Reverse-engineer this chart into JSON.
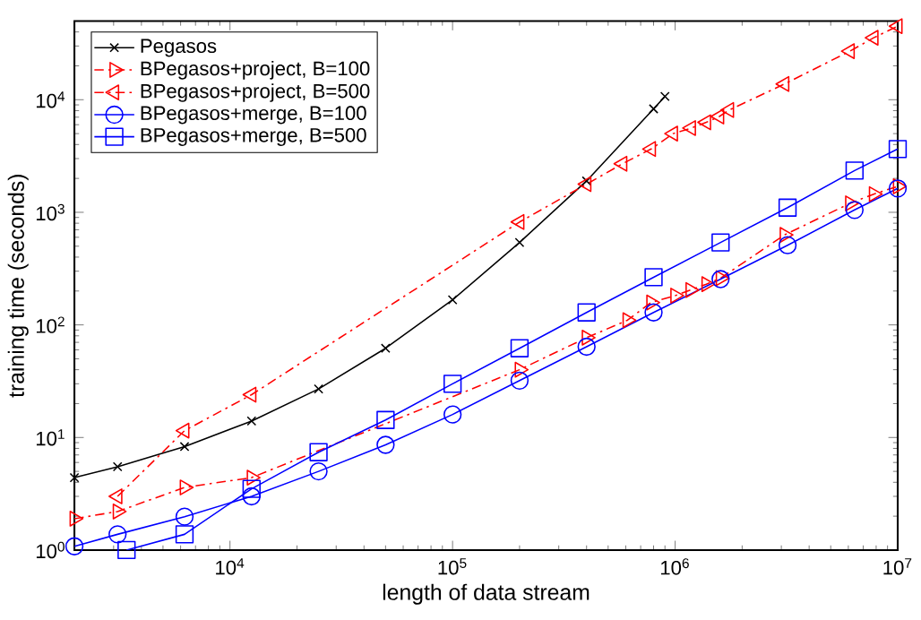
{
  "chart_data": {
    "type": "line",
    "xlabel": "length of data stream",
    "ylabel": "training time (seconds)",
    "log": "xy",
    "grid": false,
    "legend": "top left",
    "xlim": [
      2000,
      10000000
    ],
    "ylim": [
      1,
      50000
    ],
    "xticks": [
      {
        "value": 10000,
        "label": "10$^{4}$"
      },
      {
        "value": 100000,
        "label": "10$^{5}$"
      },
      {
        "value": 1000000,
        "label": "10$^{6}$"
      },
      {
        "value": 10000000,
        "label": "10$^{7}$"
      }
    ],
    "yticks": [
      {
        "value": 1,
        "label": "10$^{0}$"
      },
      {
        "value": 10,
        "label": "10$^{1}$"
      },
      {
        "value": 100,
        "label": "10$^{2}$"
      },
      {
        "value": 1000,
        "label": "10$^{3}$"
      },
      {
        "value": 10000,
        "label": "10$^{4}$"
      }
    ],
    "series": [
      {
        "name": "Pegasos",
        "color": "#000000",
        "marker": "cross",
        "line_style": "solid",
        "x": [
          2000,
          3125,
          6250,
          12500,
          25000,
          50000,
          100000,
          200000,
          400000,
          800000,
          900000
        ],
        "values": [
          4.4,
          5.5,
          8.3,
          14,
          27,
          62,
          167,
          540,
          1900,
          8300,
          10700
        ]
      },
      {
        "name": "BPegasos+project, B=100",
        "color": "#ff0000",
        "marker": "triangle-right",
        "line_style": "dashdot",
        "x": [
          2000,
          3125,
          6250,
          12500,
          200000,
          400000,
          610000,
          780000,
          1000000,
          1170000,
          1380000,
          1600000,
          3100000,
          6100000,
          7800000,
          10000000
        ],
        "values": [
          1.9,
          2.2,
          3.6,
          4.4,
          40,
          77,
          110,
          158,
          182,
          204,
          230,
          260,
          630,
          1200,
          1450,
          1700
        ]
      },
      {
        "name": "BPegasos+project, B=500",
        "color": "#ff0000",
        "marker": "triangle-left",
        "line_style": "dashdot",
        "x": [
          3125,
          6250,
          12500,
          200000,
          400000,
          580000,
          780000,
          980000,
          1180000,
          1380000,
          1580000,
          1750000,
          3100000,
          6100000,
          7800000,
          10000000
        ],
        "values": [
          3.0,
          11.5,
          24,
          820,
          1780,
          2700,
          3650,
          5000,
          5600,
          6300,
          7100,
          8100,
          13800,
          27000,
          35500,
          45000
        ]
      },
      {
        "name": "BPegasos+merge, B=100",
        "color": "#0000ff",
        "marker": "circle",
        "line_style": "solid",
        "x": [
          2000,
          3125,
          6250,
          12500,
          25000,
          50000,
          100000,
          200000,
          400000,
          800000,
          1600000,
          3200000,
          6400000,
          10000000
        ],
        "values": [
          1.08,
          1.38,
          1.98,
          3.0,
          5.0,
          8.6,
          16,
          32,
          64,
          129,
          255,
          510,
          1050,
          1630
        ]
      },
      {
        "name": "BPegasos+merge, B=500",
        "color": "#0000ff",
        "marker": "square",
        "line_style": "solid",
        "x": [
          3430,
          6250,
          12500,
          25000,
          50000,
          100000,
          200000,
          400000,
          800000,
          1600000,
          3200000,
          6400000,
          10000000
        ],
        "values": [
          1.0,
          1.38,
          3.5,
          7.4,
          14.3,
          30,
          62,
          129,
          265,
          540,
          1100,
          2350,
          3650
        ]
      }
    ]
  }
}
